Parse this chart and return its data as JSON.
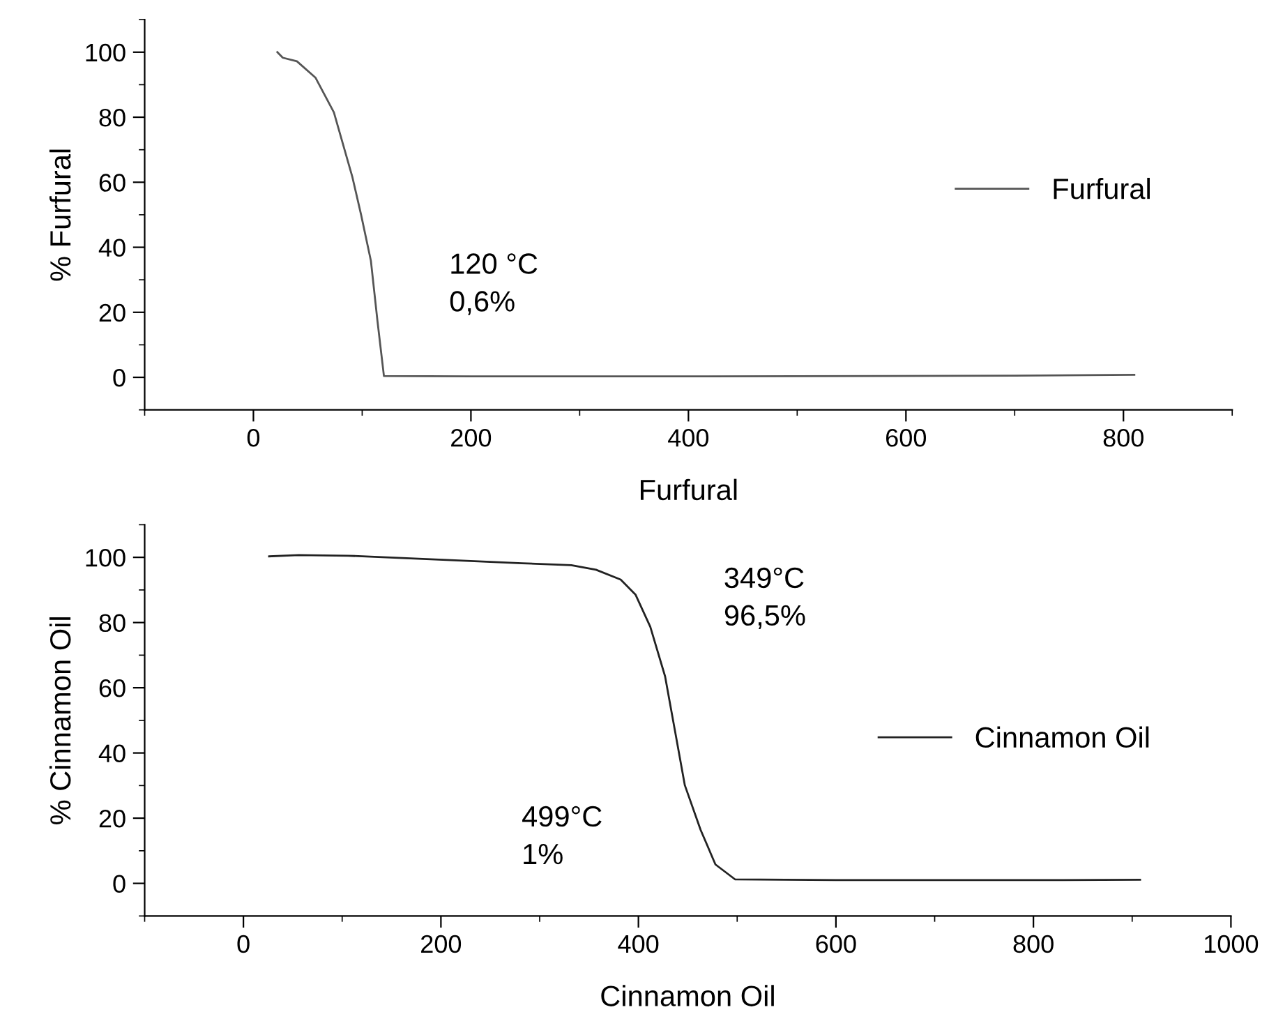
{
  "chart_data": [
    {
      "type": "line",
      "xlabel": "Furfural",
      "ylabel": "% Furfural",
      "xlim": [
        -100,
        900
      ],
      "xticks": [
        0,
        200,
        400,
        600,
        800
      ],
      "ylim": [
        -10,
        110
      ],
      "yticks": [
        0,
        20,
        40,
        60,
        80,
        100
      ],
      "grid": false,
      "legend": "right",
      "annotations": [
        "120 °C\n0,6%"
      ],
      "series": [
        {
          "name": "Furfural",
          "color": "#555555",
          "x": [
            22,
            27,
            40,
            57,
            74,
            91,
            99,
            108,
            114,
            120,
            200,
            400,
            580,
            700,
            810
          ],
          "values": [
            100,
            98.3,
            97.2,
            92.2,
            81.5,
            61.6,
            50,
            35.9,
            17.5,
            0.4,
            0.3,
            0.3,
            0.4,
            0.5,
            0.8
          ]
        }
      ]
    },
    {
      "type": "line",
      "xlabel": "Cinnamon Oil",
      "ylabel": "% Cinnamon Oil",
      "xlim": [
        -100,
        1000
      ],
      "xticks": [
        0,
        200,
        400,
        600,
        800,
        1000
      ],
      "ylim": [
        -10,
        110
      ],
      "yticks": [
        0,
        20,
        40,
        60,
        80,
        100
      ],
      "grid": false,
      "legend": "right",
      "annotations": [
        "349°C\n96,5%",
        "499°C\n1%"
      ],
      "series": [
        {
          "name": "Cinnamon Oil",
          "color": "#222222",
          "x": [
            26,
            56,
            106,
            206,
            282,
            332,
            357,
            382,
            397,
            412,
            427,
            437,
            447,
            463,
            478,
            498,
            600,
            800,
            908
          ],
          "values": [
            100.3,
            100.7,
            100.5,
            99.2,
            98.2,
            97.6,
            96.2,
            93.2,
            88.6,
            78.7,
            63.5,
            46.8,
            30.1,
            16.4,
            5.8,
            1.2,
            1,
            1,
            1.1
          ]
        }
      ]
    }
  ]
}
